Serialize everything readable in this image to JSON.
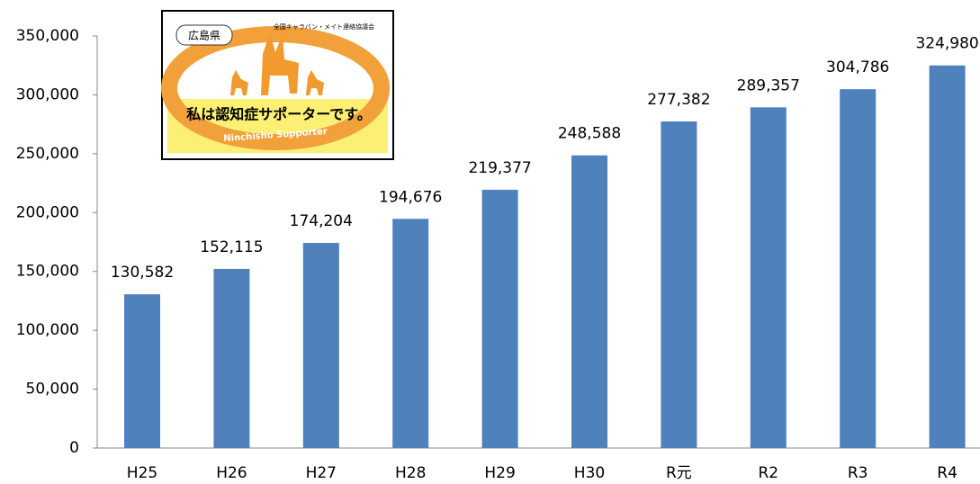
{
  "chart_data": {
    "type": "bar",
    "categories": [
      "H25",
      "H26",
      "H27",
      "H28",
      "H29",
      "H30",
      "R元",
      "R2",
      "R3",
      "R4"
    ],
    "values": [
      130582,
      152115,
      174204,
      194676,
      219377,
      248588,
      277382,
      289357,
      304786,
      324980
    ],
    "value_labels": [
      "130,582",
      "152,115",
      "174,204",
      "194,676",
      "219,377",
      "248,588",
      "277,382",
      "289,357",
      "304,786",
      "324,980"
    ],
    "color": "#4f81bd",
    "ylim": [
      0,
      350000
    ],
    "yticks": [
      0,
      {
        "value": 50000,
        "label": "50,000"
      },
      {
        "value": 100000,
        "label": "100,000"
      },
      {
        "value": 150000,
        "label": "150,000"
      },
      {
        "value": 200000,
        "label": "200,000"
      },
      {
        "value": 250000,
        "label": "250,000"
      },
      {
        "value": 300000,
        "label": "300,000"
      },
      {
        "value": 350000,
        "label": "350,000"
      }
    ],
    "grid": false
  },
  "logo": {
    "prefecture": "広島県",
    "organization": "全国キャラバン・メイト連絡協議会",
    "slogan": "私は認知症サポーターです。",
    "english": "Ninchisho Supporter"
  }
}
